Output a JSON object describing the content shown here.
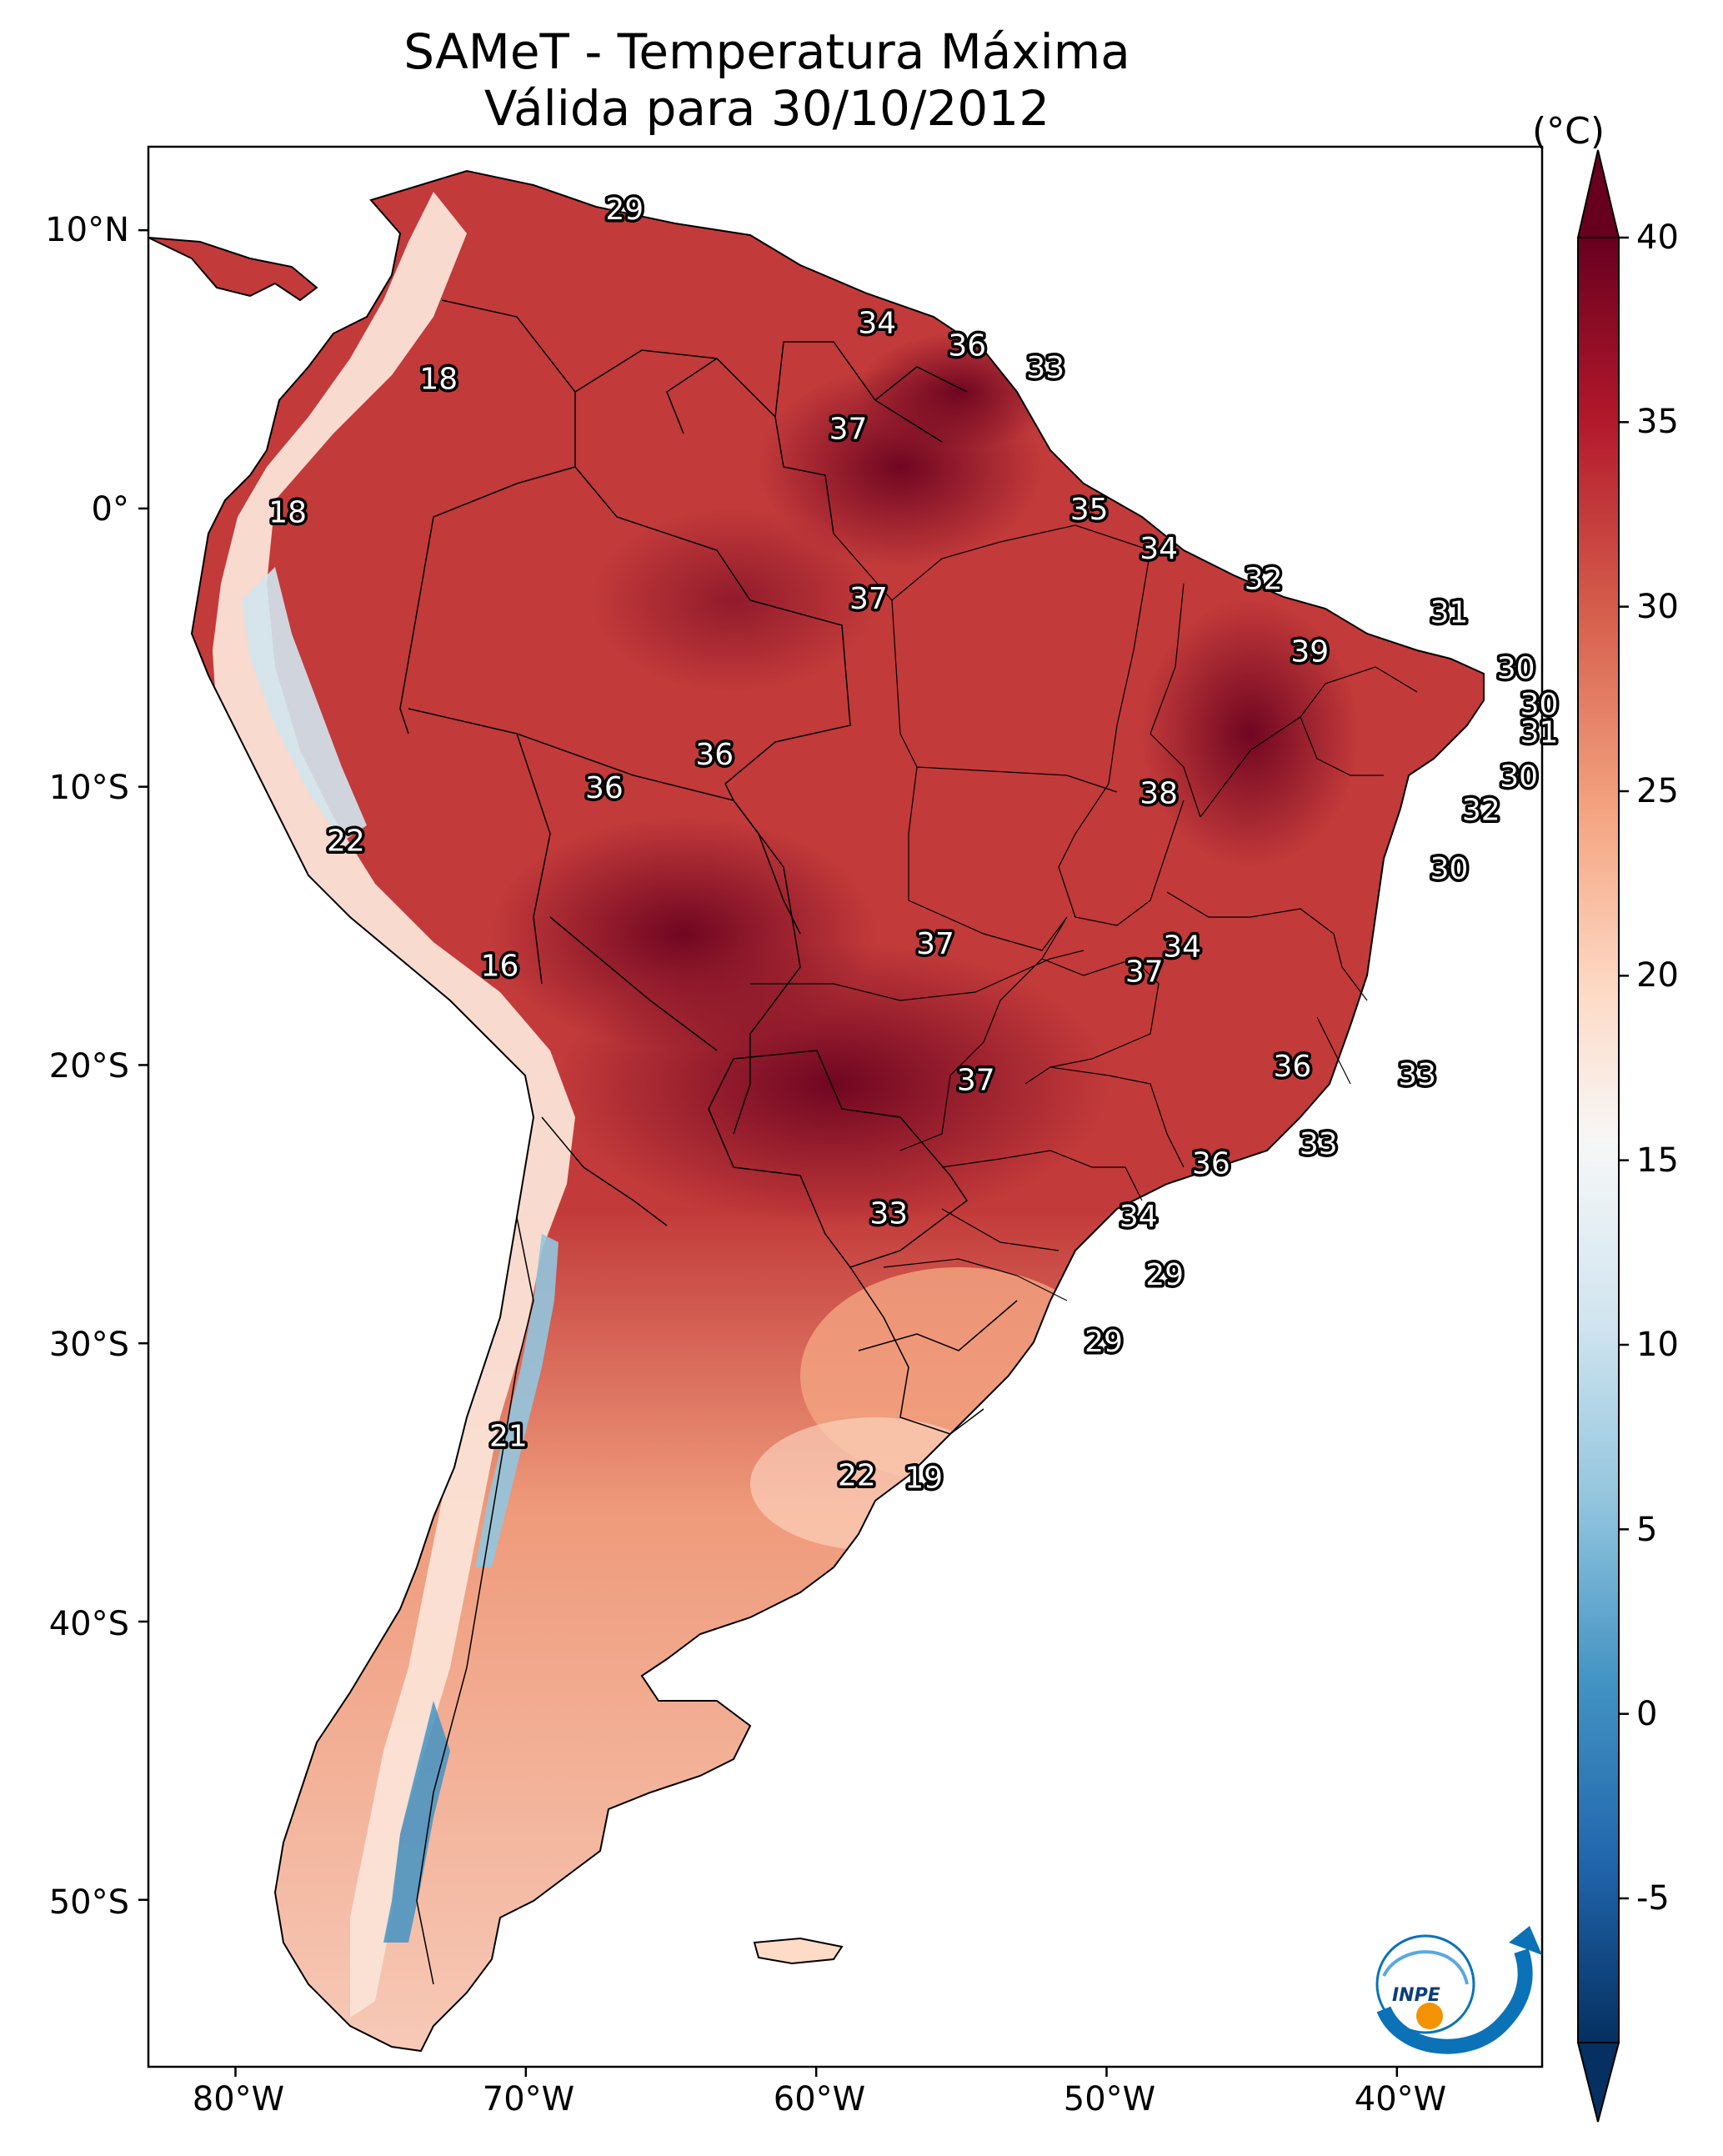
{
  "title": "SAMeT - Temperatura Máxima",
  "subtitle": "Válida para 30/10/2012",
  "colorbar": {
    "unit": "(°C)",
    "ticks": [
      "40",
      "35",
      "30",
      "25",
      "20",
      "15",
      "10",
      "5",
      "0",
      "-5"
    ],
    "colors": [
      "#67001f",
      "#b2182b",
      "#d6604d",
      "#f4a582",
      "#fddbc7",
      "#f7f7f7",
      "#d1e5f0",
      "#92c5de",
      "#4393c3",
      "#2166ac",
      "#053061"
    ]
  },
  "axes": {
    "lat_labels": [
      "10°N",
      "0°",
      "10°S",
      "20°S",
      "30°S",
      "40°S",
      "50°S"
    ],
    "lon_labels": [
      "80°W",
      "70°W",
      "60°W",
      "50°W",
      "40°W"
    ]
  },
  "chart_data": {
    "type": "heatmap",
    "title": "SAMeT - Temperatura Máxima — Válida para 30/10/2012",
    "variable": "Temperatura máxima (°C)",
    "colorbar_range": [
      -5,
      40
    ],
    "lon_range": [
      -83,
      -35
    ],
    "lat_range": [
      -56,
      13
    ],
    "point_labels": [
      {
        "lon": -66.6,
        "lat": 10.7,
        "value": "29"
      },
      {
        "lon": -57.9,
        "lat": 6.6,
        "value": "34"
      },
      {
        "lon": -54.8,
        "lat": 5.8,
        "value": "36"
      },
      {
        "lon": -52.1,
        "lat": 5.0,
        "value": "33"
      },
      {
        "lon": -73.0,
        "lat": 4.6,
        "value": "18"
      },
      {
        "lon": -58.9,
        "lat": 2.8,
        "value": "37"
      },
      {
        "lon": -78.2,
        "lat": -0.2,
        "value": "18"
      },
      {
        "lon": -50.6,
        "lat": -0.1,
        "value": "35"
      },
      {
        "lon": -48.2,
        "lat": -1.5,
        "value": "34"
      },
      {
        "lon": -44.6,
        "lat": -2.6,
        "value": "32"
      },
      {
        "lon": -38.2,
        "lat": -3.8,
        "value": "31"
      },
      {
        "lon": -58.2,
        "lat": -3.3,
        "value": "37"
      },
      {
        "lon": -43.0,
        "lat": -5.2,
        "value": "39"
      },
      {
        "lon": -35.9,
        "lat": -5.8,
        "value": "30"
      },
      {
        "lon": -35.1,
        "lat": -7.1,
        "value": "30"
      },
      {
        "lon": -35.1,
        "lat": -8.1,
        "value": "31"
      },
      {
        "lon": -63.5,
        "lat": -8.9,
        "value": "36"
      },
      {
        "lon": -35.8,
        "lat": -9.7,
        "value": "30"
      },
      {
        "lon": -67.3,
        "lat": -10.1,
        "value": "36"
      },
      {
        "lon": -48.2,
        "lat": -10.3,
        "value": "38"
      },
      {
        "lon": -37.1,
        "lat": -10.9,
        "value": "32"
      },
      {
        "lon": -38.2,
        "lat": -13.0,
        "value": "30"
      },
      {
        "lon": -76.2,
        "lat": -12.0,
        "value": "22"
      },
      {
        "lon": -55.9,
        "lat": -15.7,
        "value": "37"
      },
      {
        "lon": -47.4,
        "lat": -15.8,
        "value": "34"
      },
      {
        "lon": -48.7,
        "lat": -16.7,
        "value": "37"
      },
      {
        "lon": -70.9,
        "lat": -16.5,
        "value": "16"
      },
      {
        "lon": -43.6,
        "lat": -20.1,
        "value": "36"
      },
      {
        "lon": -39.3,
        "lat": -20.4,
        "value": "33"
      },
      {
        "lon": -54.5,
        "lat": -20.6,
        "value": "37"
      },
      {
        "lon": -42.7,
        "lat": -22.9,
        "value": "33"
      },
      {
        "lon": -46.4,
        "lat": -23.6,
        "value": "36"
      },
      {
        "lon": -57.5,
        "lat": -25.4,
        "value": "33"
      },
      {
        "lon": -48.9,
        "lat": -25.5,
        "value": "34"
      },
      {
        "lon": -48.0,
        "lat": -27.6,
        "value": "29"
      },
      {
        "lon": -50.1,
        "lat": -30.0,
        "value": "29"
      },
      {
        "lon": -70.6,
        "lat": -33.4,
        "value": "21"
      },
      {
        "lon": -58.6,
        "lat": -34.8,
        "value": "22"
      },
      {
        "lon": -56.3,
        "lat": -34.9,
        "value": "19"
      }
    ]
  }
}
